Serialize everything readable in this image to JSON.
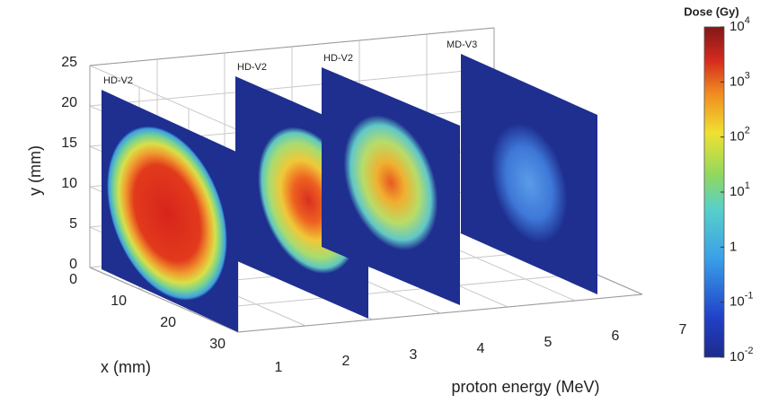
{
  "chart_data": {
    "type": "image-stack-3d",
    "xlabel": "x (mm)",
    "xlim": [
      0,
      30
    ],
    "xticks": [
      0,
      10,
      20,
      30
    ],
    "ylabel": "y (mm)",
    "ylim": [
      0,
      25
    ],
    "yticks": [
      0,
      5,
      10,
      15,
      20,
      25
    ],
    "zlabel": "proton energy (MeV)",
    "zlim": [
      1,
      7
    ],
    "zticks": [
      1,
      2,
      3,
      4,
      5,
      6,
      7
    ],
    "grid": true,
    "panels": [
      {
        "label": "HD-V2"
      },
      {
        "label": "HD-V2"
      },
      {
        "label": "HD-V2"
      },
      {
        "label": "MD-V3"
      }
    ],
    "colorbar": {
      "title": "Dose (Gy)",
      "log": true,
      "colormap": "jet",
      "clim": [
        0.01,
        10000
      ],
      "ticks": [
        {
          "value": 0.01,
          "label": "10-2"
        },
        {
          "value": 0.1,
          "label": "10-1"
        },
        1,
        {
          "value": 10,
          "label": "101"
        },
        {
          "value": 100,
          "label": "102"
        },
        {
          "value": 1000,
          "label": "103"
        },
        {
          "value": 10000,
          "label": "104"
        }
      ]
    }
  }
}
